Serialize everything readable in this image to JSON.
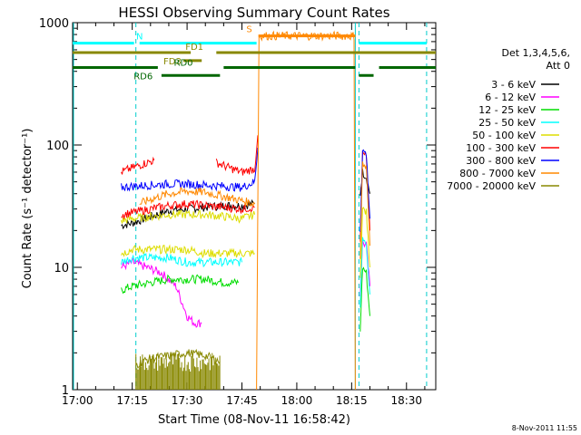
{
  "chart_data": {
    "type": "line",
    "title": "HESSI Observing Summary Count Rates",
    "xlabel": "Start Time (08-Nov-11 16:58:42)",
    "ylabel": "Count Rate (s⁻¹ detector⁻¹)",
    "y_scale": "log",
    "ylim": [
      1,
      1000
    ],
    "xlim": [
      "16:58:42",
      "18:38:00"
    ],
    "x_tick_labels": [
      "17:00",
      "17:15",
      "17:30",
      "17:45",
      "18:00",
      "18:15",
      "18:30"
    ],
    "y_tick_labels": [
      "1",
      "10",
      "100",
      "1000"
    ],
    "footer_date": "8-Nov-2011 11:55",
    "legend": {
      "placement": "right",
      "header_line1": "Det 1,3,4,5,6,",
      "header_line2": "Att 0",
      "entries": [
        {
          "label": "3 - 6 keV",
          "color": "#000000"
        },
        {
          "label": "6 - 12 keV",
          "color": "#ff00ff"
        },
        {
          "label": "12 - 25 keV",
          "color": "#00dd00"
        },
        {
          "label": "25 - 50 keV",
          "color": "#00ffff"
        },
        {
          "label": "50 - 100 keV",
          "color": "#dddd00"
        },
        {
          "label": "100 - 300 keV",
          "color": "#ff0000"
        },
        {
          "label": "300 - 800 keV",
          "color": "#0000ff"
        },
        {
          "label": "800 - 7000 keV",
          "color": "#ff8800"
        },
        {
          "label": "7000 - 20000 keV",
          "color": "#888800"
        }
      ]
    },
    "night_marks": [
      "17:16:00",
      "18:17:00",
      "18:35:30"
    ],
    "saa_marks": [
      "18:16:00"
    ],
    "flag_bars": [
      {
        "label": "N",
        "color": "#00ffff",
        "level": 680,
        "segments": [
          [
            "16:58:42",
            "17:15:30"
          ],
          [
            "17:17:00",
            "17:49:00"
          ],
          [
            "18:17:00",
            "18:35:30"
          ]
        ]
      },
      {
        "label": "S",
        "color": "#ff8800",
        "level": 780,
        "segments": [
          [
            "17:49:30",
            "18:16:00"
          ]
        ]
      },
      {
        "label": "FD1",
        "color": "#888800",
        "level": 570,
        "segments": [
          [
            "16:58:42",
            "17:31:00"
          ],
          [
            "17:38:00",
            "18:38:00"
          ]
        ]
      },
      {
        "label": "FD3",
        "color": "#888800",
        "level": 490,
        "segments": [
          [
            "17:29:00",
            "17:34:00"
          ]
        ]
      },
      {
        "label": "RD0",
        "color": "#006600",
        "level": 430,
        "segments": [
          [
            "16:58:42",
            "17:22:00"
          ],
          [
            "17:40:00",
            "18:16:00"
          ],
          [
            "18:22:30",
            "18:38:00"
          ]
        ]
      },
      {
        "label": "RD6",
        "color": "#006600",
        "level": 370,
        "segments": [
          [
            "17:23:00",
            "17:39:00"
          ],
          [
            "18:17:00",
            "18:21:00"
          ]
        ]
      }
    ],
    "series": [
      {
        "name": "3 - 6 keV",
        "color": "#000000",
        "segments": [
          {
            "x": [
              "17:12:00",
              "17:15:00",
              "17:20:00",
              "17:25:00",
              "17:30:00",
              "17:35:00",
              "17:40:00",
              "17:45:00",
              "17:48:30"
            ],
            "y": [
              22,
              23,
              26,
              29,
              30,
              31,
              32,
              32,
              33
            ]
          },
          {
            "x": [
              "18:17:20",
              "18:18:00",
              "18:19:00",
              "18:20:00"
            ],
            "y": [
              40,
              60,
              55,
              40
            ]
          }
        ]
      },
      {
        "name": "6 - 12 keV",
        "color": "#ff00ff",
        "segments": [
          {
            "x": [
              "17:12:00",
              "17:15:00",
              "17:19:00",
              "17:23:00",
              "17:27:00",
              "17:30:00",
              "17:32:00",
              "17:34:00"
            ],
            "y": [
              10,
              11,
              10,
              9,
              7,
              4,
              3.5,
              3.5
            ]
          },
          {
            "x": [
              "18:17:20",
              "18:18:00",
              "18:19:00",
              "18:20:00"
            ],
            "y": [
              6,
              16,
              15,
              7
            ]
          }
        ]
      },
      {
        "name": "12 - 25 keV",
        "color": "#00dd00",
        "segments": [
          {
            "x": [
              "17:12:00",
              "17:15:00",
              "17:20:00",
              "17:25:00",
              "17:30:00",
              "17:35:00",
              "17:40:00",
              "17:44:00"
            ],
            "y": [
              6.5,
              7,
              7.5,
              8,
              8,
              8,
              7.5,
              7.5
            ]
          },
          {
            "x": [
              "18:17:20",
              "18:18:00",
              "18:19:00",
              "18:20:00"
            ],
            "y": [
              3,
              10,
              9,
              4
            ]
          }
        ]
      },
      {
        "name": "25 - 50 keV",
        "color": "#00ffff",
        "segments": [
          {
            "x": [
              "17:12:00",
              "17:15:00",
              "17:20:00",
              "17:25:00",
              "17:30:00",
              "17:35:00",
              "17:40:00",
              "17:45:00"
            ],
            "y": [
              11,
              12,
              12,
              12,
              11,
              11,
              11,
              11
            ]
          },
          {
            "x": [
              "18:17:20",
              "18:18:00",
              "18:19:00",
              "18:20:00"
            ],
            "y": [
              5,
              18,
              16,
              6
            ]
          }
        ]
      },
      {
        "name": "50 - 100 keV",
        "color": "#dddd00",
        "segments": [
          {
            "x": [
              "17:12:00",
              "17:15:00",
              "17:20:00",
              "17:25:00",
              "17:30:00",
              "17:35:00",
              "17:40:00",
              "17:45:00",
              "17:48:30"
            ],
            "y": [
              13,
              14,
              14,
              14,
              14,
              13,
              13,
              13,
              13
            ]
          },
          {
            "x": [
              "17:12:00",
              "17:15:00",
              "17:20:00",
              "17:25:00",
              "17:30:00",
              "17:35:00",
              "17:40:00",
              "17:45:00",
              "17:48:30"
            ],
            "y": [
              24,
              25,
              26,
              27,
              27,
              27,
              26,
              25,
              27
            ]
          },
          {
            "x": [
              "18:17:20",
              "18:18:00",
              "18:19:00",
              "18:20:00"
            ],
            "y": [
              8,
              30,
              28,
              10
            ]
          }
        ]
      },
      {
        "name": "100 - 300 keV",
        "color": "#ff0000",
        "segments": [
          {
            "x": [
              "17:12:00",
              "17:15:00",
              "17:20:00",
              "17:25:00",
              "17:30:00",
              "17:35:00",
              "17:40:00",
              "17:45:00",
              "17:48:30"
            ],
            "y": [
              27,
              28,
              30,
              32,
              33,
              32,
              31,
              30,
              31
            ]
          },
          {
            "x": [
              "17:12:00",
              "17:15:00",
              "17:18:00",
              "17:21:00"
            ],
            "y": [
              60,
              65,
              70,
              75
            ]
          },
          {
            "x": [
              "17:38:00",
              "17:41:00",
              "17:45:00",
              "17:48:30",
              "17:49:20"
            ],
            "y": [
              72,
              66,
              60,
              64,
              120
            ]
          },
          {
            "x": [
              "18:17:20",
              "18:18:00",
              "18:19:00",
              "18:20:00"
            ],
            "y": [
              15,
              85,
              80,
              20
            ]
          }
        ]
      },
      {
        "name": "300 - 800 keV",
        "color": "#0000ff",
        "segments": [
          {
            "x": [
              "17:12:00",
              "17:15:00",
              "17:20:00",
              "17:25:00",
              "17:30:00",
              "17:35:00",
              "17:40:00",
              "17:45:00",
              "17:48:30",
              "17:49:20"
            ],
            "y": [
              45,
              46,
              47,
              48,
              48,
              47,
              46,
              45,
              50,
              95
            ]
          },
          {
            "x": [
              "18:17:20",
              "18:18:00",
              "18:19:00",
              "18:20:00"
            ],
            "y": [
              20,
              90,
              85,
              25
            ]
          }
        ]
      },
      {
        "name": "800 - 7000 keV",
        "color": "#ff8800",
        "segments": [
          {
            "x": [
              "17:17:00",
              "17:20:00",
              "17:25:00",
              "17:30:00",
              "17:35:00",
              "17:40:00",
              "17:45:00",
              "17:48:30"
            ],
            "y": [
              33,
              36,
              40,
              42,
              41,
              38,
              35,
              33
            ]
          },
          {
            "x": [
              "17:49:00",
              "17:49:40",
              "18:15:40",
              "18:16:00"
            ],
            "y": [
              1,
              780,
              780,
              1
            ]
          },
          {
            "x": [
              "18:17:20",
              "18:18:00",
              "18:19:00",
              "18:20:00"
            ],
            "y": [
              12,
              70,
              65,
              15
            ]
          }
        ]
      },
      {
        "name": "7000 - 20000 keV",
        "color": "#888800",
        "segments": [
          {
            "x": [
              "17:16:00",
              "17:20:00",
              "17:25:00",
              "17:30:00",
              "17:35:00",
              "17:39:00"
            ],
            "y": [
              1.6,
              1.8,
              1.9,
              2.0,
              1.9,
              1.7
            ]
          }
        ]
      }
    ]
  }
}
